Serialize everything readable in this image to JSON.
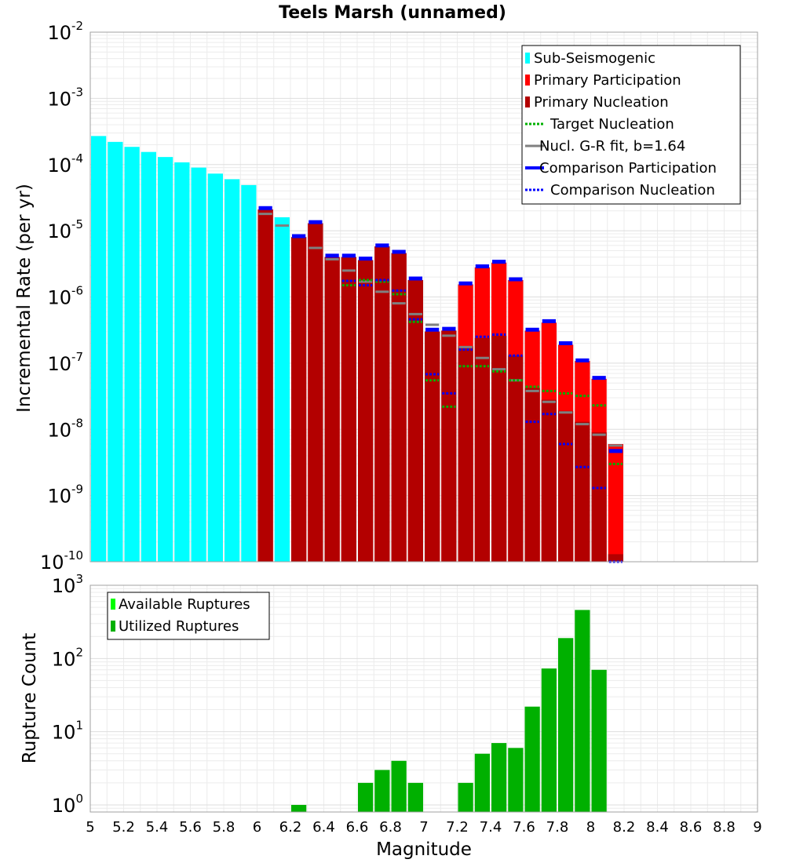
{
  "chart_data": [
    {
      "type": "bar",
      "title": "Teels Marsh (unnamed)",
      "xlabel": "Magnitude",
      "ylabel": "Incremental Rate (per yr)",
      "xlim": [
        5,
        9
      ],
      "ylim": [
        1e-10,
        0.01
      ],
      "yscale": "log",
      "bin_width": 0.1,
      "ytick_labels": [
        {
          "base": "10",
          "exp": "-10",
          "value": 1e-10
        },
        {
          "base": "10",
          "exp": "-9",
          "value": 1e-09
        },
        {
          "base": "10",
          "exp": "-8",
          "value": 1e-08
        },
        {
          "base": "10",
          "exp": "-7",
          "value": 1e-07
        },
        {
          "base": "10",
          "exp": "-6",
          "value": 1e-06
        },
        {
          "base": "10",
          "exp": "-5",
          "value": 1e-05
        },
        {
          "base": "10",
          "exp": "-4",
          "value": 0.0001
        },
        {
          "base": "10",
          "exp": "-3",
          "value": 0.001
        },
        {
          "base": "10",
          "exp": "-2",
          "value": 0.01
        }
      ],
      "legend_position": "top-right",
      "legend": [
        {
          "label": "Sub-Seismogenic",
          "color": "#00ffff",
          "style": "bar"
        },
        {
          "label": "Primary Participation",
          "color": "#ff0000",
          "style": "bar"
        },
        {
          "label": "Primary Nucleation",
          "color": "#b30000",
          "style": "bar"
        },
        {
          "label": "Target Nucleation",
          "color": "#00b000",
          "style": "dotted"
        },
        {
          "label": "Nucl. G-R fit, b=1.64",
          "color": "#808080",
          "style": "line"
        },
        {
          "label": "Comparison Participation",
          "color": "#0000ff",
          "style": "thick"
        },
        {
          "label": "Comparison Nucleation",
          "color": "#0000ff",
          "style": "dotted"
        }
      ],
      "series": [
        {
          "name": "Sub-Seismogenic",
          "x": [
            5.05,
            5.15,
            5.25,
            5.35,
            5.45,
            5.55,
            5.65,
            5.75,
            5.85,
            5.95,
            6.15
          ],
          "values": [
            0.00027,
            0.00022,
            0.000185,
            0.000155,
            0.00013,
            0.000108,
            9e-05,
            7.3e-05,
            6e-05,
            4.9e-05,
            1.6e-05
          ]
        },
        {
          "name": "Primary Participation",
          "x": [
            6.05,
            6.25,
            6.35,
            6.45,
            6.55,
            6.65,
            6.75,
            6.85,
            6.95,
            7.05,
            7.15,
            7.25,
            7.35,
            7.45,
            7.55,
            7.65,
            7.75,
            7.85,
            7.95,
            8.05,
            8.15
          ],
          "values": [
            2.1e-05,
            8e-06,
            1.3e-05,
            4e-06,
            4e-06,
            3.6e-06,
            5.8e-06,
            4.6e-06,
            1.8e-06,
            3e-07,
            3.1e-07,
            1.55e-06,
            2.8e-06,
            3.3e-06,
            1.8e-06,
            3.1e-07,
            4.1e-07,
            1.9e-07,
            1.08e-07,
            5.8e-08,
            6e-09
          ]
        },
        {
          "name": "Primary Nucleation",
          "x": [
            6.05,
            6.25,
            6.35,
            6.45,
            6.55,
            6.65,
            6.75,
            6.85,
            6.95,
            7.05,
            7.15,
            7.25,
            7.35,
            7.45,
            7.55,
            7.65,
            7.75,
            7.85,
            7.95,
            8.05,
            8.15
          ],
          "values": [
            2.1e-05,
            8e-06,
            1.3e-05,
            4e-06,
            4e-06,
            3.6e-06,
            5.8e-06,
            4.6e-06,
            1.8e-06,
            3e-07,
            3.1e-07,
            1.8e-07,
            2.4e-07,
            2.6e-07,
            1.3e-07,
            4.2e-08,
            2.8e-08,
            1.9e-08,
            1.3e-08,
            9e-09,
            1.3e-10
          ]
        },
        {
          "name": "Target Nucleation",
          "x": [
            6.55,
            6.65,
            6.75,
            6.85,
            6.95,
            7.05,
            7.15,
            7.25,
            7.35,
            7.45,
            7.55,
            7.65,
            7.75,
            7.85,
            7.95,
            8.05,
            8.15
          ],
          "values": [
            1.5e-06,
            1.8e-06,
            1.7e-06,
            1.1e-06,
            4.2e-07,
            5.5e-08,
            2.2e-08,
            9e-08,
            9e-08,
            7.5e-08,
            5.5e-08,
            4.4e-08,
            3.8e-08,
            3.5e-08,
            3.2e-08,
            2.3e-08,
            3e-09
          ]
        },
        {
          "name": "Nucl. G-R fit, b=1.64",
          "x": [
            6.05,
            6.15,
            6.35,
            6.45,
            6.55,
            6.65,
            6.75,
            6.85,
            6.95,
            7.05,
            7.15,
            7.25,
            7.35,
            7.45,
            7.55,
            7.65,
            7.75,
            7.85,
            7.95,
            8.05,
            8.15
          ],
          "values": [
            1.8e-05,
            1.2e-05,
            5.5e-06,
            3.7e-06,
            2.5e-06,
            1.7e-06,
            1.2e-06,
            8e-07,
            5.5e-07,
            3.8e-07,
            2.6e-07,
            1.75e-07,
            1.2e-07,
            8.1e-08,
            5.5e-08,
            3.8e-08,
            2.6e-08,
            1.8e-08,
            1.2e-08,
            8.3e-09,
            5.7e-09
          ]
        },
        {
          "name": "Comparison Participation",
          "x": [
            6.05,
            6.25,
            6.35,
            6.45,
            6.55,
            6.65,
            6.75,
            6.85,
            6.95,
            7.05,
            7.15,
            7.25,
            7.35,
            7.45,
            7.55,
            7.65,
            7.75,
            7.85,
            7.95,
            8.05,
            8.15
          ],
          "values": [
            2.2e-05,
            8.3e-06,
            1.35e-05,
            4.2e-06,
            4.2e-06,
            3.8e-06,
            6e-06,
            4.8e-06,
            1.9e-06,
            3.2e-07,
            3.3e-07,
            1.6e-06,
            2.9e-06,
            3.4e-06,
            1.85e-06,
            3.2e-07,
            4.3e-07,
            2e-07,
            1.1e-07,
            6e-08,
            4.7e-09
          ]
        },
        {
          "name": "Comparison Nucleation",
          "x": [
            6.55,
            6.65,
            6.75,
            6.85,
            6.95,
            7.05,
            7.15,
            7.25,
            7.35,
            7.45,
            7.55,
            7.65,
            7.75,
            7.85,
            7.95,
            8.05,
            8.15
          ],
          "values": [
            1.75e-06,
            1.5e-06,
            1.8e-06,
            1.25e-06,
            4.6e-07,
            6.8e-08,
            3.5e-08,
            1.6e-07,
            2.5e-07,
            2.7e-07,
            1.3e-07,
            1.3e-08,
            1.7e-08,
            6e-09,
            2.7e-09,
            1.3e-09,
            1e-10
          ]
        }
      ]
    },
    {
      "type": "bar",
      "title": "",
      "xlabel": "Magnitude",
      "ylabel": "Rupture Count",
      "xlim": [
        5,
        9
      ],
      "ylim": [
        0.8,
        1000
      ],
      "yscale": "log",
      "bin_width": 0.1,
      "xtick_labels": [
        "5",
        "5.2",
        "5.4",
        "5.6",
        "5.8",
        "6",
        "6.2",
        "6.4",
        "6.6",
        "6.8",
        "7",
        "7.2",
        "7.4",
        "7.6",
        "7.8",
        "8",
        "8.2",
        "8.4",
        "8.6",
        "8.8",
        "9"
      ],
      "xticks": [
        5,
        5.2,
        5.4,
        5.6,
        5.8,
        6,
        6.2,
        6.4,
        6.6,
        6.8,
        7,
        7.2,
        7.4,
        7.6,
        7.8,
        8,
        8.2,
        8.4,
        8.6,
        8.8,
        9
      ],
      "ytick_labels": [
        {
          "base": "10",
          "exp": "0",
          "value": 1
        },
        {
          "base": "10",
          "exp": "1",
          "value": 10
        },
        {
          "base": "10",
          "exp": "2",
          "value": 100
        },
        {
          "base": "10",
          "exp": "3",
          "value": 1000
        }
      ],
      "legend_position": "top-left",
      "legend": [
        {
          "label": "Available Ruptures",
          "color": "#00ff00",
          "style": "bar"
        },
        {
          "label": "Utilized Ruptures",
          "color": "#00b000",
          "style": "bar"
        }
      ],
      "series": [
        {
          "name": "Utilized Ruptures",
          "x": [
            6.25,
            6.65,
            6.75,
            6.85,
            6.95,
            7.25,
            7.35,
            7.45,
            7.55,
            7.65,
            7.75,
            7.85,
            7.95,
            8.05
          ],
          "values": [
            1,
            2,
            3,
            4,
            2,
            2,
            5,
            7,
            6,
            22,
            73,
            190,
            460,
            70
          ]
        }
      ]
    }
  ]
}
